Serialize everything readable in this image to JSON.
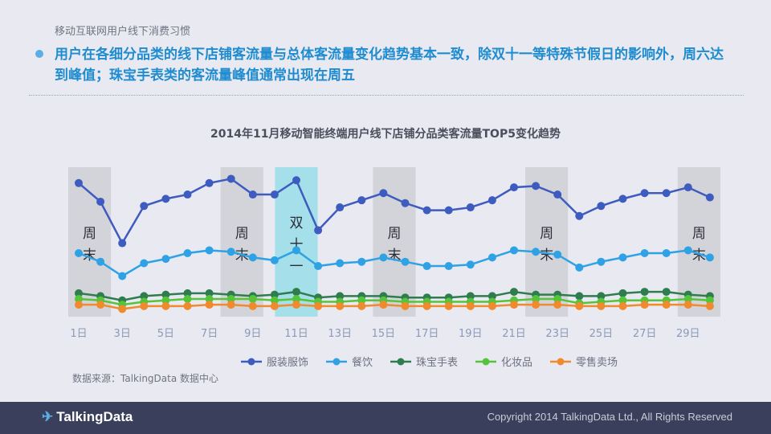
{
  "header": {
    "section_title": "移动互联网用户线下消费习惯",
    "headline": "用户在各细分品类的线下店铺客流量与总体客流量变化趋势基本一致，除双十一等特殊节假日的影响外，周六达到峰值；珠宝手表类的客流量峰值通常出现在周五"
  },
  "source": "数据来源：TalkingData 数据中心",
  "footer": {
    "logo": "TalkingData",
    "copyright": "Copyright 2014 TalkingData Ltd., All Rights Reserved"
  },
  "chart_data": {
    "type": "line",
    "title": "2014年11月移动智能终端用户线下店铺分品类客流量TOP5变化趋势",
    "x": [
      1,
      2,
      3,
      4,
      5,
      6,
      7,
      8,
      9,
      10,
      11,
      12,
      13,
      14,
      15,
      16,
      17,
      18,
      19,
      20,
      21,
      22,
      23,
      24,
      25,
      26,
      27,
      28,
      29,
      30
    ],
    "x_tick_labels": [
      "1日",
      "3日",
      "5日",
      "7日",
      "9日",
      "11日",
      "13日",
      "15日",
      "17日",
      "19日",
      "21日",
      "23日",
      "25日",
      "27日",
      "29日"
    ],
    "x_tick_values": [
      1,
      3,
      5,
      7,
      9,
      11,
      13,
      15,
      17,
      19,
      21,
      23,
      25,
      27,
      29
    ],
    "ylim": [
      0,
      100
    ],
    "grid": false,
    "legend_position": "bottom",
    "highlight_bands": [
      {
        "from": 1,
        "to": 2,
        "label_chars": [
          "周",
          "末"
        ],
        "color": "#d3d4d9"
      },
      {
        "from": 8,
        "to": 9,
        "label_chars": [
          "周",
          "末"
        ],
        "color": "#d3d4d9"
      },
      {
        "from": 10.5,
        "to": 11.5,
        "label_chars": [
          "双",
          "十",
          "一"
        ],
        "color": "#a5e0ea"
      },
      {
        "from": 15,
        "to": 16,
        "label_chars": [
          "周",
          "末"
        ],
        "color": "#d3d4d9"
      },
      {
        "from": 22,
        "to": 23,
        "label_chars": [
          "周",
          "末"
        ],
        "color": "#d3d4d9"
      },
      {
        "from": 29,
        "to": 30,
        "label_chars": [
          "周",
          "末"
        ],
        "color": "#d3d4d9"
      }
    ],
    "series": [
      {
        "name": "服装服饰",
        "color": "#3e5bbf",
        "values": [
          90,
          77,
          48,
          74,
          79,
          82,
          90,
          93,
          82,
          82,
          92,
          57,
          73,
          78,
          83,
          76,
          71,
          71,
          73,
          78,
          87,
          88,
          82,
          67,
          74,
          79,
          83,
          83,
          87,
          80
        ]
      },
      {
        "name": "餐饮",
        "color": "#2fa2e6",
        "values": [
          41,
          35,
          25,
          34,
          37,
          41,
          43,
          42,
          38,
          36,
          43,
          32,
          34,
          35,
          38,
          35,
          32,
          32,
          33,
          38,
          43,
          42,
          40,
          31,
          35,
          38,
          41,
          41,
          43,
          38
        ]
      },
      {
        "name": "珠宝手表",
        "color": "#2f7d4f",
        "values": [
          13,
          11,
          8,
          11,
          12,
          13,
          13,
          12,
          11,
          12,
          14,
          10,
          11,
          11,
          11,
          10,
          10,
          10,
          11,
          11,
          14,
          12,
          12,
          11,
          11,
          13,
          14,
          14,
          12,
          11
        ]
      },
      {
        "name": "化妆品",
        "color": "#56c43a",
        "values": [
          9,
          8,
          5,
          7,
          8,
          9,
          9,
          9,
          9,
          8,
          9,
          7,
          7,
          8,
          8,
          7,
          7,
          7,
          7,
          7,
          8,
          9,
          9,
          6,
          7,
          8,
          8,
          8,
          9,
          8
        ]
      },
      {
        "name": "零售卖场",
        "color": "#f08a2d",
        "values": [
          5,
          5,
          2,
          4,
          4,
          4,
          5,
          5,
          4,
          4,
          5,
          4,
          4,
          4,
          5,
          4,
          4,
          4,
          4,
          4,
          5,
          5,
          5,
          4,
          4,
          4,
          5,
          5,
          5,
          4
        ]
      }
    ]
  }
}
